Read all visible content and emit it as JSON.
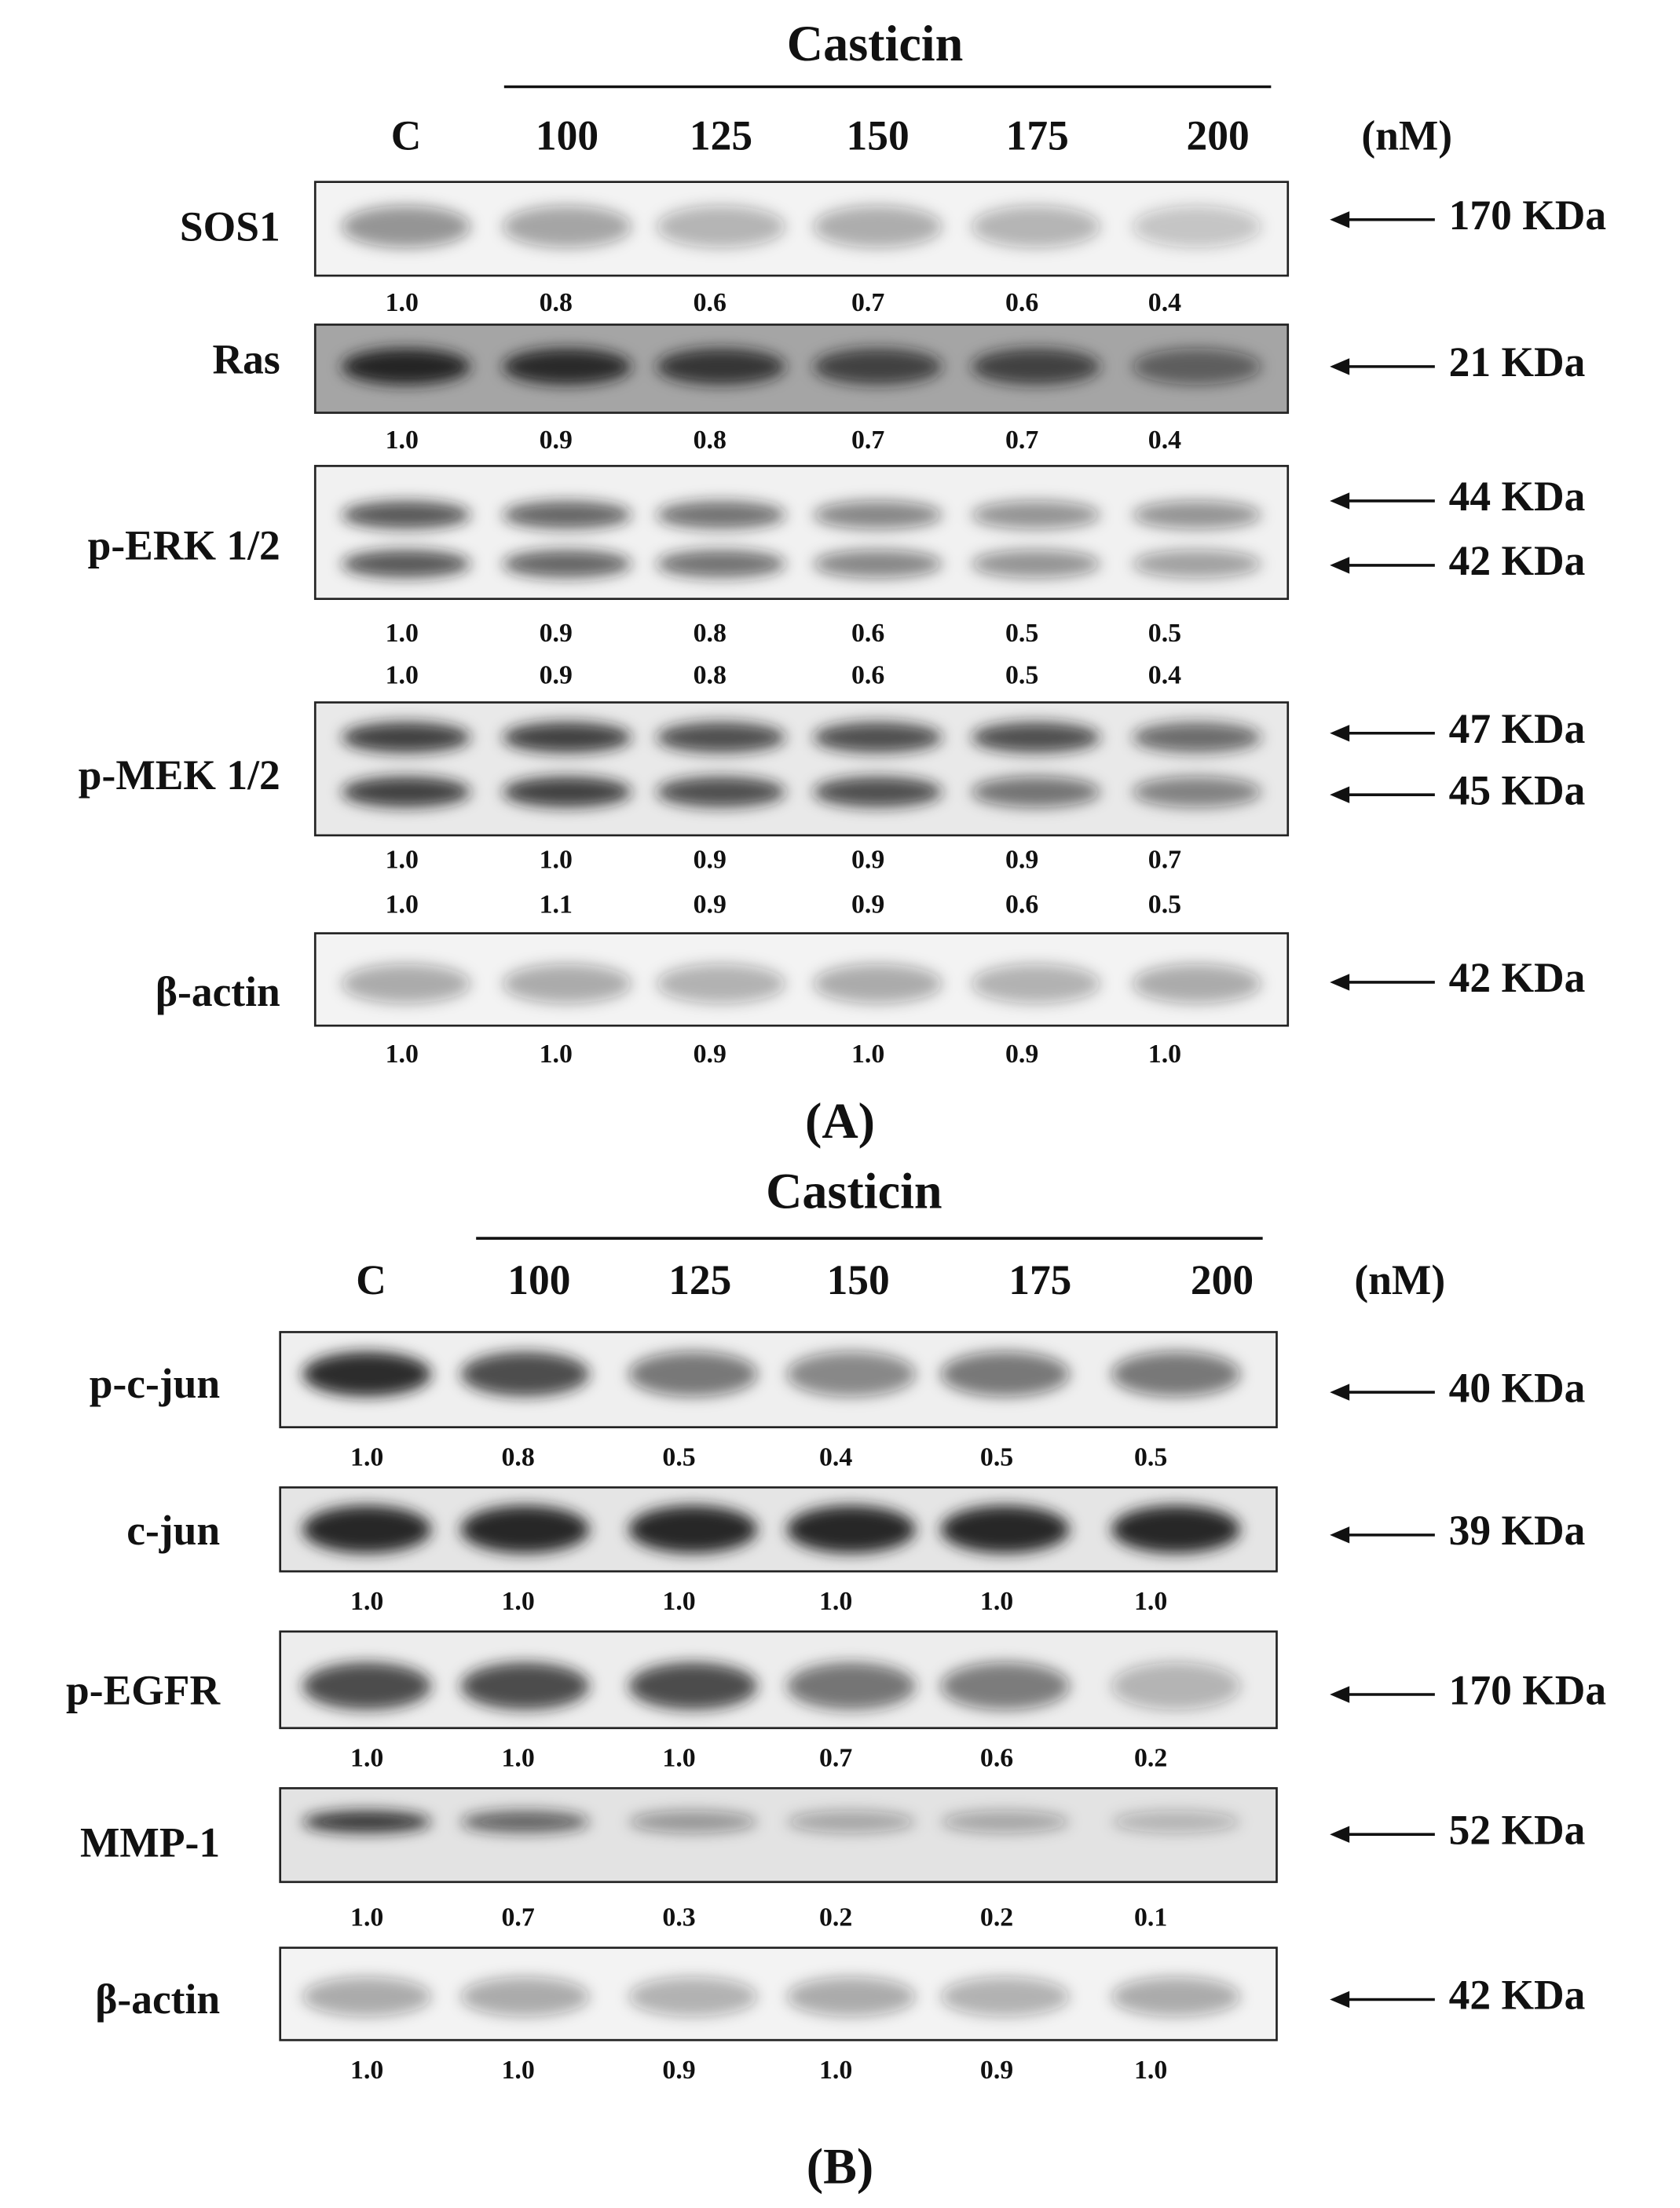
{
  "panels": [
    {
      "treatment": "Casticin",
      "lanes": [
        "C",
        "100",
        "125",
        "150",
        "175",
        "200"
      ],
      "unit": "(nM)",
      "label": "(A)",
      "blots": [
        {
          "name": "SOS1",
          "markers": [
            "170 KDa"
          ],
          "quant": [
            [
              "1.0",
              "0.8",
              "0.6",
              "0.7",
              "0.6",
              "0.4"
            ]
          ]
        },
        {
          "name": "Ras",
          "markers": [
            "21 KDa"
          ],
          "quant": [
            [
              "1.0",
              "0.9",
              "0.8",
              "0.7",
              "0.7",
              "0.4"
            ]
          ]
        },
        {
          "name": "p-ERK 1/2",
          "markers": [
            "44 KDa",
            "42 KDa"
          ],
          "quant": [
            [
              "1.0",
              "0.9",
              "0.8",
              "0.6",
              "0.5",
              "0.5"
            ],
            [
              "1.0",
              "0.9",
              "0.8",
              "0.6",
              "0.5",
              "0.4"
            ]
          ]
        },
        {
          "name": "p-MEK 1/2",
          "markers": [
            "47 KDa",
            "45 KDa"
          ],
          "quant": [
            [
              "1.0",
              "1.0",
              "0.9",
              "0.9",
              "0.9",
              "0.7"
            ],
            [
              "1.0",
              "1.1",
              "0.9",
              "0.9",
              "0.6",
              "0.5"
            ]
          ]
        },
        {
          "name": "β-actin",
          "markers": [
            "42 KDa"
          ],
          "quant": [
            [
              "1.0",
              "1.0",
              "0.9",
              "1.0",
              "0.9",
              "1.0"
            ]
          ]
        }
      ]
    },
    {
      "treatment": "Casticin",
      "lanes": [
        "C",
        "100",
        "125",
        "150",
        "175",
        "200"
      ],
      "unit": "(nM)",
      "label": "(B)",
      "blots": [
        {
          "name": "p-c-jun",
          "markers": [
            "40 KDa"
          ],
          "quant": [
            [
              "1.0",
              "0.8",
              "0.5",
              "0.4",
              "0.5",
              "0.5"
            ]
          ]
        },
        {
          "name": "c-jun",
          "markers": [
            "39 KDa"
          ],
          "quant": [
            [
              "1.0",
              "1.0",
              "1.0",
              "1.0",
              "1.0",
              "1.0"
            ]
          ]
        },
        {
          "name": "p-EGFR",
          "markers": [
            "170 KDa"
          ],
          "quant": [
            [
              "1.0",
              "1.0",
              "1.0",
              "0.7",
              "0.6",
              "0.2"
            ]
          ]
        },
        {
          "name": "MMP-1",
          "markers": [
            "52 KDa"
          ],
          "quant": [
            [
              "1.0",
              "0.7",
              "0.3",
              "0.2",
              "0.2",
              "0.1"
            ]
          ]
        },
        {
          "name": "β-actin",
          "markers": [
            "42 KDa"
          ],
          "quant": [
            [
              "1.0",
              "1.0",
              "0.9",
              "1.0",
              "0.9",
              "1.0"
            ]
          ]
        }
      ]
    }
  ]
}
